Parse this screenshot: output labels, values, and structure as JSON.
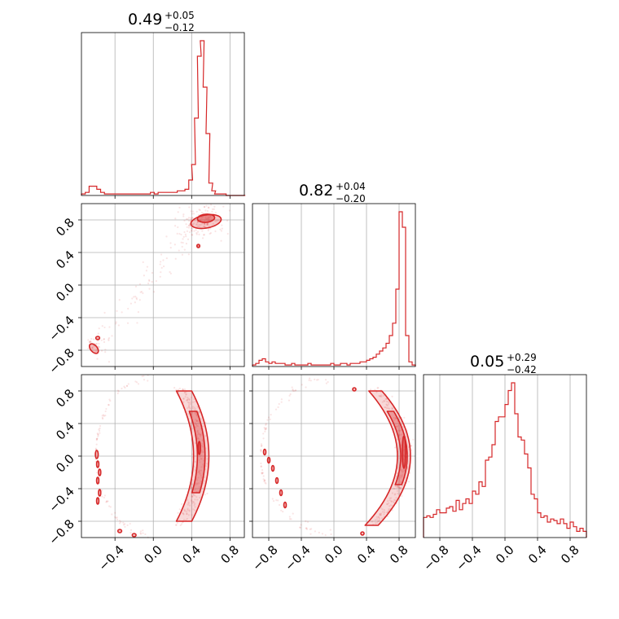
{
  "chart_data": {
    "type": "corner",
    "color": "#d62728",
    "titles": [
      {
        "value": "0.49",
        "plus": "+0.05",
        "minus": "−0.12"
      },
      {
        "value": "0.82",
        "plus": "+0.04",
        "minus": "−0.20"
      },
      {
        "value": "0.05",
        "plus": "+0.29",
        "minus": "−0.42"
      }
    ],
    "axes": {
      "p0": {
        "range": [
          -0.75,
          0.95
        ],
        "ticks": [
          -0.4,
          0.0,
          0.4,
          0.8
        ],
        "tick_labels": [
          "−0.4",
          "0.0",
          "0.4",
          "0.8"
        ]
      },
      "p1": {
        "range": [
          -1.0,
          1.0
        ],
        "ticks": [
          -0.8,
          -0.4,
          0.0,
          0.4,
          0.8
        ],
        "tick_labels": [
          "−0.8",
          "−0.4",
          "0.0",
          "0.4",
          "0.8"
        ]
      },
      "p2": {
        "range": [
          -1.0,
          1.0
        ],
        "ticks": [
          -0.8,
          -0.4,
          0.0,
          0.4,
          0.8
        ],
        "tick_labels": [
          "−0.8",
          "−0.4",
          "0.0",
          "0.4",
          "0.8"
        ]
      }
    },
    "histograms": {
      "p0": {
        "x": [
          -0.73,
          -0.69,
          -0.65,
          -0.61,
          -0.57,
          -0.53,
          -0.49,
          -0.45,
          -0.41,
          -0.37,
          -0.33,
          -0.29,
          -0.25,
          -0.21,
          -0.17,
          -0.13,
          -0.09,
          -0.05,
          -0.01,
          0.03,
          0.07,
          0.11,
          0.15,
          0.19,
          0.23,
          0.27,
          0.31,
          0.35,
          0.39,
          0.42,
          0.45,
          0.48,
          0.51,
          0.54,
          0.57,
          0.6,
          0.63,
          0.66,
          0.7,
          0.74,
          0.78,
          0.82,
          0.86,
          0.9,
          0.94
        ],
        "density": [
          0.01,
          0.02,
          0.06,
          0.06,
          0.04,
          0.02,
          0.01,
          0.01,
          0.01,
          0.01,
          0.01,
          0.01,
          0.01,
          0.01,
          0.01,
          0.01,
          0.01,
          0.01,
          0.02,
          0.01,
          0.02,
          0.02,
          0.02,
          0.02,
          0.02,
          0.03,
          0.03,
          0.04,
          0.1,
          0.2,
          0.5,
          0.9,
          1.0,
          0.7,
          0.4,
          0.08,
          0.03,
          0.01,
          0.01,
          0.01,
          0.0,
          0.0,
          0.0,
          0.0,
          0.0
        ]
      },
      "p1": {
        "x": [
          -0.98,
          -0.94,
          -0.9,
          -0.86,
          -0.82,
          -0.78,
          -0.74,
          -0.7,
          -0.66,
          -0.62,
          -0.58,
          -0.54,
          -0.5,
          -0.46,
          -0.42,
          -0.38,
          -0.34,
          -0.3,
          -0.26,
          -0.22,
          -0.18,
          -0.14,
          -0.1,
          -0.06,
          -0.02,
          0.02,
          0.06,
          0.1,
          0.14,
          0.18,
          0.22,
          0.26,
          0.3,
          0.34,
          0.38,
          0.42,
          0.46,
          0.5,
          0.54,
          0.58,
          0.62,
          0.66,
          0.7,
          0.74,
          0.78,
          0.82,
          0.86,
          0.9,
          0.94,
          0.98
        ],
        "density": [
          0.01,
          0.02,
          0.04,
          0.05,
          0.03,
          0.02,
          0.03,
          0.02,
          0.02,
          0.02,
          0.01,
          0.01,
          0.02,
          0.01,
          0.01,
          0.01,
          0.01,
          0.02,
          0.01,
          0.01,
          0.01,
          0.01,
          0.01,
          0.01,
          0.02,
          0.01,
          0.01,
          0.02,
          0.02,
          0.01,
          0.02,
          0.02,
          0.02,
          0.03,
          0.03,
          0.04,
          0.05,
          0.06,
          0.08,
          0.1,
          0.12,
          0.15,
          0.2,
          0.28,
          0.5,
          1.0,
          0.9,
          0.2,
          0.03,
          0.01
        ]
      },
      "p2": {
        "x": [
          -0.98,
          -0.94,
          -0.9,
          -0.86,
          -0.82,
          -0.78,
          -0.74,
          -0.7,
          -0.66,
          -0.62,
          -0.58,
          -0.54,
          -0.5,
          -0.46,
          -0.42,
          -0.38,
          -0.34,
          -0.3,
          -0.26,
          -0.22,
          -0.18,
          -0.14,
          -0.1,
          -0.06,
          -0.02,
          0.02,
          0.06,
          0.1,
          0.14,
          0.18,
          0.22,
          0.26,
          0.3,
          0.34,
          0.38,
          0.42,
          0.46,
          0.5,
          0.54,
          0.58,
          0.62,
          0.66,
          0.7,
          0.74,
          0.78,
          0.82,
          0.86,
          0.9,
          0.94,
          0.98
        ],
        "density": [
          0.13,
          0.14,
          0.13,
          0.15,
          0.18,
          0.16,
          0.16,
          0.19,
          0.2,
          0.17,
          0.24,
          0.18,
          0.22,
          0.25,
          0.22,
          0.3,
          0.28,
          0.36,
          0.33,
          0.5,
          0.52,
          0.6,
          0.75,
          0.78,
          0.78,
          0.86,
          0.95,
          1.0,
          0.8,
          0.65,
          0.63,
          0.54,
          0.45,
          0.28,
          0.25,
          0.16,
          0.13,
          0.14,
          0.1,
          0.12,
          0.11,
          0.09,
          0.12,
          0.09,
          0.06,
          0.1,
          0.07,
          0.04,
          0.06,
          0.04
        ]
      }
    },
    "panels_2d": [
      {
        "x": "p0",
        "y": "p1",
        "kind": "contour-density",
        "clusters": [
          [
            0.55,
            0.8
          ],
          [
            0.47,
            0.5
          ],
          [
            -0.63,
            -0.8
          ]
        ]
      },
      {
        "x": "p0",
        "y": "p2",
        "kind": "contour-density",
        "clusters": [
          [
            0.48,
            0.1
          ],
          [
            -0.6,
            -0.2
          ]
        ]
      },
      {
        "x": "p1",
        "y": "p2",
        "kind": "contour-density",
        "clusters": [
          [
            0.84,
            0.1
          ],
          [
            -0.85,
            -0.2
          ]
        ]
      }
    ]
  }
}
